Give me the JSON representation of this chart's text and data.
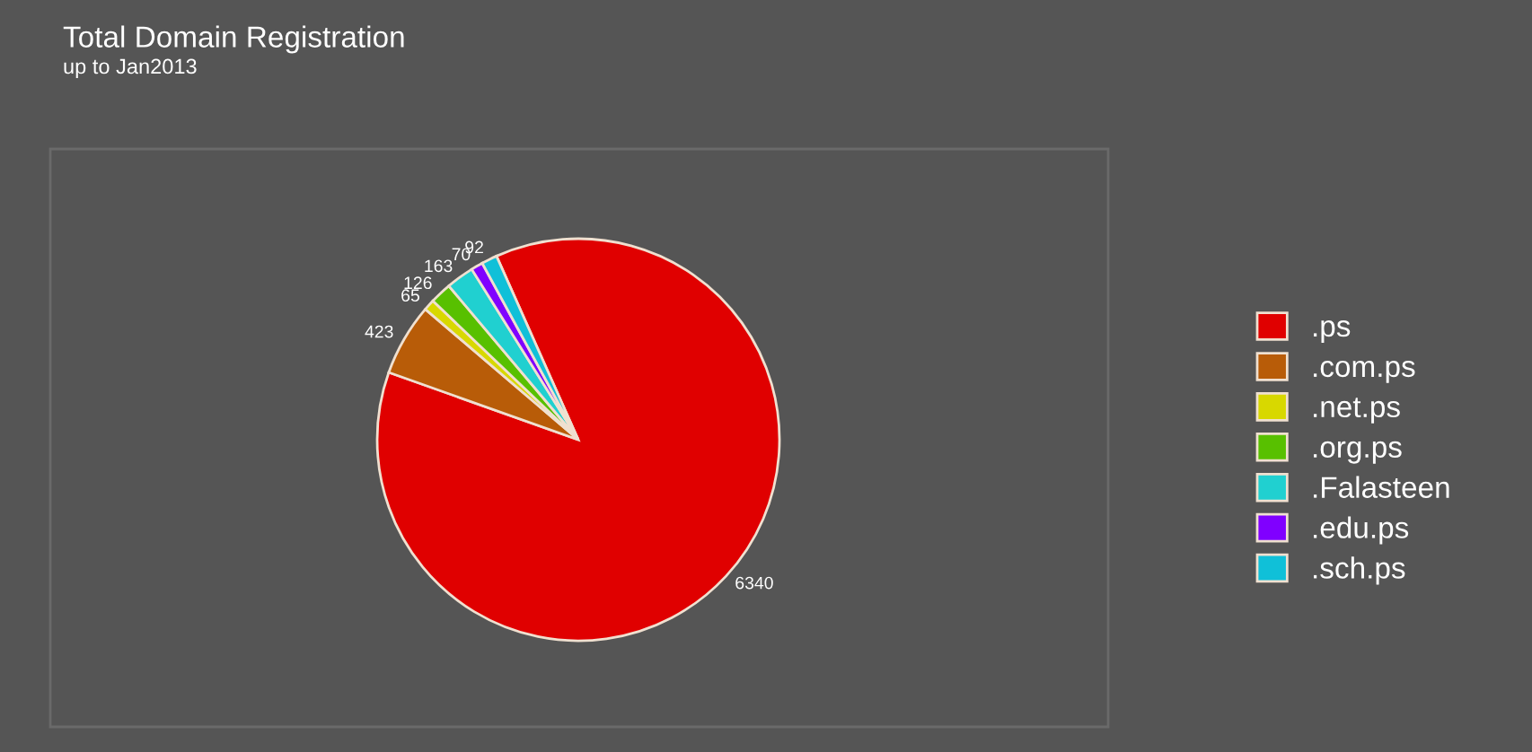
{
  "chart_data": {
    "type": "pie",
    "title": "Total Domain Registration",
    "subtitle": "up to Jan2013",
    "categories": [
      ".ps",
      ".com.ps",
      ".net.ps",
      ".org.ps",
      ".Falasteen",
      ".edu.ps",
      ".sch.ps"
    ],
    "values": [
      6340,
      423,
      65,
      126,
      163,
      70,
      92
    ],
    "colors": [
      "#e00000",
      "#b85c08",
      "#d8d800",
      "#58c000",
      "#20d0d0",
      "#8000ff",
      "#10c0d8"
    ],
    "data_labels": true,
    "legend": "right"
  }
}
